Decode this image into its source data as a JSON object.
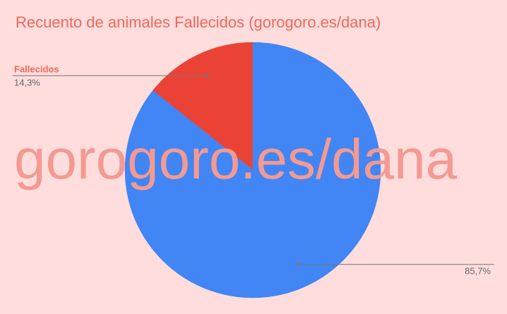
{
  "colors": {
    "background": "#ffdddd",
    "title": "#f0685a",
    "watermark": "#f39a92",
    "leader": "#777777",
    "percent_text": "#666666"
  },
  "watermark_text": "gorogoro.es/dana",
  "chart_data": {
    "type": "pie",
    "title": "Recuento de animales Fallecidos (gorogoro.es/dana)",
    "start_angle_deg": 0,
    "direction": "counterclockwise",
    "slices": [
      {
        "label": "Fallecidos",
        "value": 14.3,
        "pct_label": "14,3%",
        "color": "#ea4335",
        "show_name": true
      },
      {
        "label": "",
        "value": 85.7,
        "pct_label": "85,7%",
        "color": "#4285f4",
        "show_name": false
      }
    ]
  }
}
